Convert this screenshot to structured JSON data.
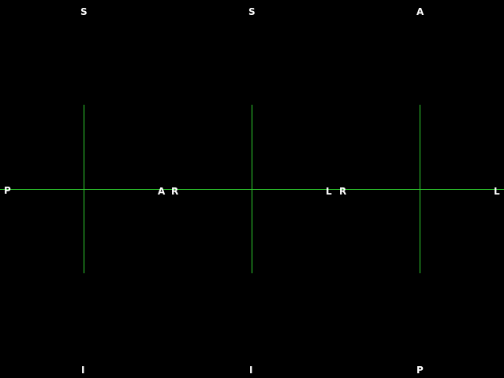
{
  "crosshair_color": "#2ecc2e",
  "background_color": "#000000",
  "panes": [
    {
      "top": "S",
      "bottom": "I",
      "left": "P",
      "right": "A"
    },
    {
      "top": "S",
      "bottom": "I",
      "left": "R",
      "right": "L"
    },
    {
      "top": "A",
      "bottom": "P",
      "left": "R",
      "right": "L"
    }
  ]
}
